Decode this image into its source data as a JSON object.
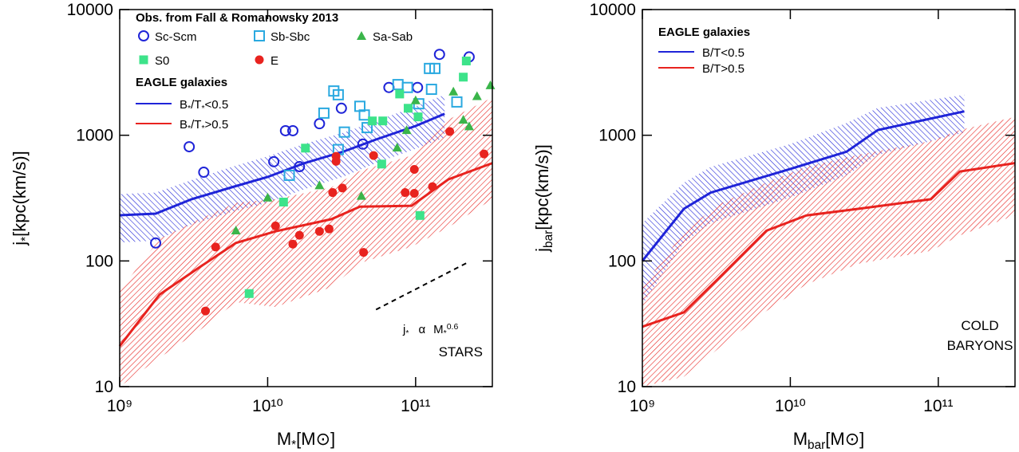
{
  "chart_data": [
    {
      "type": "line",
      "xscale": "log",
      "yscale": "log",
      "xlim": [
        1000000000.0,
        330000000000.0
      ],
      "ylim": [
        10,
        10000
      ],
      "xticks": [
        {
          "value": 1000000000.0,
          "label": "10⁹"
        },
        {
          "value": 10000000000.0,
          "label": "10¹⁰"
        },
        {
          "value": 100000000000.0,
          "label": "10¹¹"
        }
      ],
      "yticks": [
        10,
        100,
        1000,
        10000
      ],
      "x_label": [
        "M",
        "*",
        "[M⊙]"
      ],
      "y_label": [
        "j",
        "*",
        "[kpc(km/s)]"
      ],
      "observations": {
        "title": "Obs. from Fall & Romanowsky 2013",
        "series": [
          {
            "name": "Sc-Scm",
            "color": "#1f24d8",
            "marker": "circle-open",
            "x": [
              1750000000.0,
              2950000000.0,
              3700000000.0,
              11000000000.0,
              13200000000.0,
              14800000000.0,
              16400000000.0,
              22400000000.0,
              31500000000.0,
              44000000000.0,
              66000000000.0,
              103000000000.0,
              145000000000.0,
              230000000000.0
            ],
            "values": [
              139,
              810,
              508,
              616,
              1087,
              1087,
              563,
              1236,
              1640,
              850,
              2400,
              2400,
              4400,
              4200
            ]
          },
          {
            "name": "Sb-Sbc",
            "color": "#2aa9e0",
            "marker": "square-open",
            "x": [
              14000000000.0,
              24000000000.0,
              28000000000.0,
              30000000000.0,
              33000000000.0,
              30000000000.0,
              42000000000.0,
              45000000000.0,
              47000000000.0,
              76000000000.0,
              88000000000.0,
              105000000000.0,
              128000000000.0,
              124000000000.0,
              135000000000.0,
              190000000000.0
            ],
            "values": [
              480,
              1500,
              2250,
              2100,
              1060,
              770,
              1700,
              1450,
              1150,
              2530,
              2400,
              1780,
              2320,
              3400,
              3400,
              1840
            ]
          },
          {
            "name": "Sa-Sab",
            "color": "#3ab54a",
            "marker": "triangle",
            "x": [
              6100000000.0,
              10000000000.0,
              22400000000.0,
              43000000000.0,
              75000000000.0,
              87000000000.0,
              100000000000.0,
              180000000000.0,
              210000000000.0,
              260000000000.0,
              320000000000.0,
              230000000000.0
            ],
            "values": [
              175,
              320,
              400,
              330,
              800,
              1100,
              1900,
              2230,
              1330,
              2050,
              2500,
              1180
            ]
          },
          {
            "name": "S0",
            "color": "#3de38a",
            "marker": "square",
            "x": [
              12800000000.0,
              7500000000.0,
              18000000000.0,
              51000000000.0,
              59000000000.0,
              60000000000.0,
              78000000000.0,
              89000000000.0,
              104000000000.0,
              107000000000.0,
              210000000000.0,
              220000000000.0
            ],
            "values": [
              294,
              55,
              790,
              1300,
              590,
              1300,
              2130,
              1640,
              1400,
              230,
              2900,
              3900
            ]
          },
          {
            "name": "E",
            "color": "#e8231f",
            "marker": "circle",
            "x": [
              3800000000.0,
              4450000000.0,
              11300000000.0,
              14800000000.0,
              16400000000.0,
              22400000000.0,
              26000000000.0,
              27500000000.0,
              29000000000.0,
              29000000000.0,
              32000000000.0,
              44500000000.0,
              52000000000.0,
              85000000000.0,
              98000000000.0,
              98000000000.0,
              130000000000.0,
              170000000000.0,
              290000000000.0
            ],
            "values": [
              40,
              129,
              190,
              136,
              160,
              172,
              180,
              350,
              680,
              620,
              380,
              117,
              690,
              350,
              345,
              535,
              390,
              1070,
              710
            ]
          }
        ]
      },
      "legend_title": "EAGLE galaxies",
      "series": [
        {
          "name": [
            "B",
            "*",
            "/T",
            "*",
            "<0.5"
          ],
          "color": "#1f24d8",
          "x": [
            1000000000.0,
            1750000000.0,
            3060000000.0,
            5700000000.0,
            10000000000.0,
            17500000000.0,
            32700000000.0,
            54000000000.0,
            100000000000.0,
            157000000000.0
          ],
          "values": [
            231,
            238,
            310,
            385,
            466,
            597,
            743,
            925,
            1186,
            1480
          ],
          "lower": [
            140,
            145,
            195,
            245,
            290,
            370,
            470,
            600,
            780,
            960
          ],
          "upper": [
            340,
            350,
            440,
            560,
            680,
            850,
            1050,
            1300,
            1700,
            2100
          ]
        },
        {
          "name": [
            "B",
            "*",
            "/T",
            "*",
            ">0.5"
          ],
          "color": "#e8231f",
          "x": [
            1000000000.0,
            1860000000.0,
            3460000000.0,
            6100000000.0,
            11300000000.0,
            27000000000.0,
            42000000000.0,
            94000000000.0,
            166000000000.0,
            330000000000.0
          ],
          "values": [
            21,
            54,
            89,
            139,
            172,
            215,
            270,
            275,
            445,
            600
          ],
          "lower": [
            10,
            17,
            28,
            47,
            43,
            62,
            96,
            130,
            185,
            310
          ],
          "upper": [
            58,
            150,
            215,
            290,
            310,
            385,
            520,
            690,
            1330,
            2000
          ]
        }
      ],
      "reference_line": {
        "label": [
          "j",
          "*",
          "α",
          "M",
          "*",
          "0.6"
        ],
        "x": [
          54000000000.0,
          220000000000.0
        ],
        "values": [
          41,
          96
        ]
      },
      "annotation": [
        "STARS"
      ]
    },
    {
      "type": "line",
      "xscale": "log",
      "yscale": "log",
      "xlim": [
        1000000000.0,
        330000000000.0
      ],
      "ylim": [
        10,
        10000
      ],
      "xticks": [
        {
          "value": 1000000000.0,
          "label": "10⁹"
        },
        {
          "value": 10000000000.0,
          "label": "10¹⁰"
        },
        {
          "value": 100000000000.0,
          "label": "10¹¹"
        }
      ],
      "yticks": [
        10,
        100,
        1000,
        10000
      ],
      "x_label": [
        "M",
        "bar",
        "[M⊙]"
      ],
      "y_label": [
        "j",
        "bar",
        "[kpc(km/s)]"
      ],
      "legend_title": "EAGLE galaxies",
      "series": [
        {
          "name": "B/T<0.5",
          "color": "#1f24d8",
          "x": [
            1000000000.0,
            1910000000.0,
            2900000000.0,
            10000000000.0,
            24000000000.0,
            39000000000.0,
            150000000000.0
          ],
          "values": [
            100,
            260,
            350,
            540,
            740,
            1100,
            1550
          ],
          "lower": [
            45,
            140,
            200,
            320,
            480,
            700,
            1050
          ],
          "upper": [
            200,
            420,
            560,
            850,
            1250,
            1650,
            2100
          ]
        },
        {
          "name": "B/T>0.5",
          "color": "#e8231f",
          "x": [
            1000000000.0,
            1910000000.0,
            3250000000.0,
            6900000000.0,
            12800000000.0,
            29000000000.0,
            89000000000.0,
            140000000000.0,
            330000000000.0
          ],
          "values": [
            30,
            39,
            72,
            174,
            230,
            260,
            310,
            515,
            600
          ],
          "lower": [
            10,
            12,
            20,
            40,
            65,
            95,
            120,
            160,
            230
          ],
          "upper": [
            62,
            170,
            280,
            420,
            560,
            700,
            900,
            1100,
            1400
          ]
        }
      ],
      "annotation": [
        "COLD",
        "BARYONS"
      ]
    }
  ]
}
